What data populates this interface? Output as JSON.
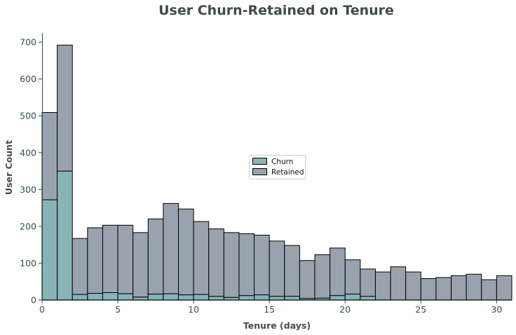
{
  "chart_data": {
    "type": "bar",
    "title": "User Churn-Retained on Tenure",
    "xlabel": "Tenure (days)",
    "ylabel": "User Count",
    "xlim": [
      0,
      31
    ],
    "ylim": [
      0,
      725
    ],
    "bin_edges": [
      0,
      1,
      2,
      3,
      4,
      5,
      6,
      7,
      8,
      9,
      10,
      11,
      12,
      13,
      14,
      15,
      16,
      17,
      18,
      19,
      20,
      21,
      22,
      23,
      24,
      25,
      26,
      27,
      28,
      29,
      30,
      31
    ],
    "x_ticks": [
      0,
      5,
      10,
      15,
      20,
      25,
      30
    ],
    "x_tick_labels": [
      "0",
      "5",
      "10",
      "15",
      "20",
      "25",
      "30"
    ],
    "y_ticks": [
      0,
      100,
      200,
      300,
      400,
      500,
      600,
      700
    ],
    "y_tick_labels": [
      "0",
      "100",
      "200",
      "300",
      "400",
      "500",
      "600",
      "700"
    ],
    "stacked": true,
    "series": [
      {
        "name": "Churn",
        "color": "#88b4b6",
        "values": [
          272,
          350,
          15,
          18,
          20,
          17,
          8,
          16,
          17,
          14,
          15,
          10,
          7,
          12,
          14,
          10,
          10,
          4,
          5,
          12,
          16,
          10,
          0,
          0,
          0,
          0,
          0,
          0,
          0,
          0,
          0
        ]
      },
      {
        "name": "Retained",
        "color": "#99a3ad",
        "values": [
          237,
          342,
          152,
          178,
          183,
          186,
          175,
          204,
          245,
          233,
          198,
          183,
          176,
          168,
          162,
          150,
          138,
          103,
          118,
          129,
          93,
          74,
          76,
          90,
          76,
          58,
          61,
          66,
          70,
          55,
          66
        ]
      }
    ],
    "edge_color": "#000000",
    "grid": false,
    "legend_position": "center"
  }
}
